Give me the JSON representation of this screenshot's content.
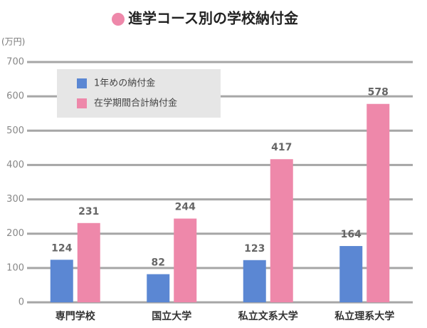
{
  "chart_data": {
    "type": "bar",
    "title": "進学コース別の学校納付金",
    "y_unit": "(万円)",
    "categories": [
      "専門学校",
      "国立大学",
      "私立文系大学",
      "私立理系大学"
    ],
    "series": [
      {
        "name": "1年めの納付金",
        "color": "#5b87d3",
        "values": [
          124,
          82,
          123,
          164
        ]
      },
      {
        "name": "在学期間合計納付金",
        "color": "#ee88aa",
        "values": [
          231,
          244,
          417,
          578
        ]
      }
    ],
    "ylim": [
      0,
      700
    ],
    "yticks": [
      0,
      100,
      200,
      300,
      400,
      500,
      600,
      700
    ],
    "grid": true,
    "legend": "top-left"
  }
}
